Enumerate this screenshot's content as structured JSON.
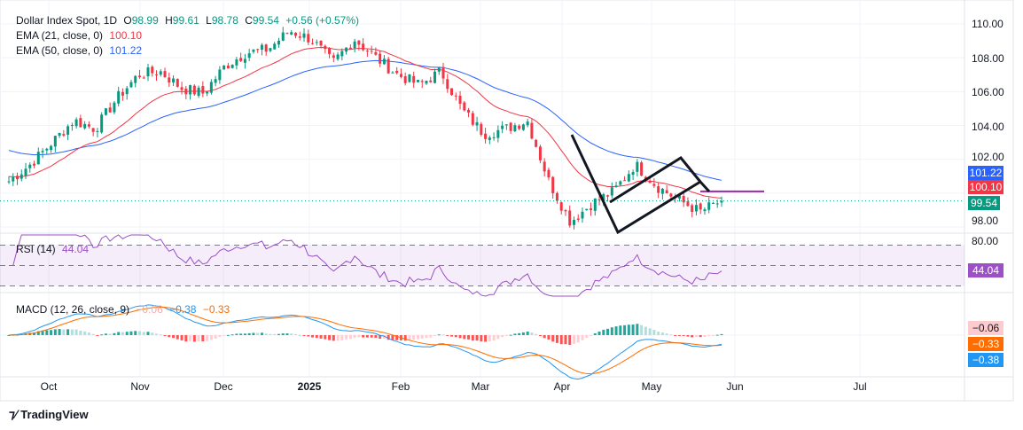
{
  "header": {
    "symbol": "Dollar Index Spot, 1D",
    "open_label": "O",
    "open": "98.99",
    "high_label": "H",
    "high": "99.61",
    "low_label": "L",
    "low": "98.78",
    "close_label": "C",
    "close": "99.54",
    "change": "+0.56 (+0.57%)"
  },
  "ema21": {
    "label": "EMA (21, close, 0)",
    "value": "100.10",
    "color": "#f23645"
  },
  "ema50": {
    "label": "EMA (50, close, 0)",
    "value": "101.22",
    "color": "#2962ff"
  },
  "rsi": {
    "label": "RSI (14)",
    "value": "44.04",
    "axis_top": "80.00",
    "color": "#9c4fc7"
  },
  "macd": {
    "label": "MACD (12, 26, close, 9)",
    "hist": "−0.06",
    "macd": "−0.38",
    "signal": "−0.33",
    "macd_color": "#2196f3",
    "signal_color": "#ff6d00"
  },
  "price_tag": "99.54",
  "footer": {
    "brand": "TradingView"
  },
  "colors": {
    "up": "#089981",
    "down": "#f23645"
  },
  "chart_data": {
    "type": "candlestick",
    "title": "Dollar Index Spot, 1D",
    "y_ticks": [
      "110.00",
      "108.00",
      "106.00",
      "104.00",
      "102.00",
      "98.00"
    ],
    "ylim": [
      97.6,
      110.6
    ],
    "x_labels": [
      "Oct",
      "Nov",
      "Dec",
      "2025",
      "Feb",
      "Mar",
      "Apr",
      "May",
      "Jun",
      "Jul"
    ],
    "approx_close_path": [
      100.7,
      101.7,
      103.0,
      104.3,
      103.8,
      105.6,
      107.0,
      107.2,
      106.2,
      105.9,
      107.5,
      108.3,
      108.5,
      109.6,
      109.1,
      107.7,
      109.1,
      108.0,
      107.0,
      106.4,
      107.2,
      104.9,
      103.5,
      103.8,
      104.3,
      100.7,
      98.3,
      99.4,
      100.1,
      101.7,
      100.4,
      99.6,
      98.9,
      99.54
    ],
    "horizontal_level": 100.1
  }
}
